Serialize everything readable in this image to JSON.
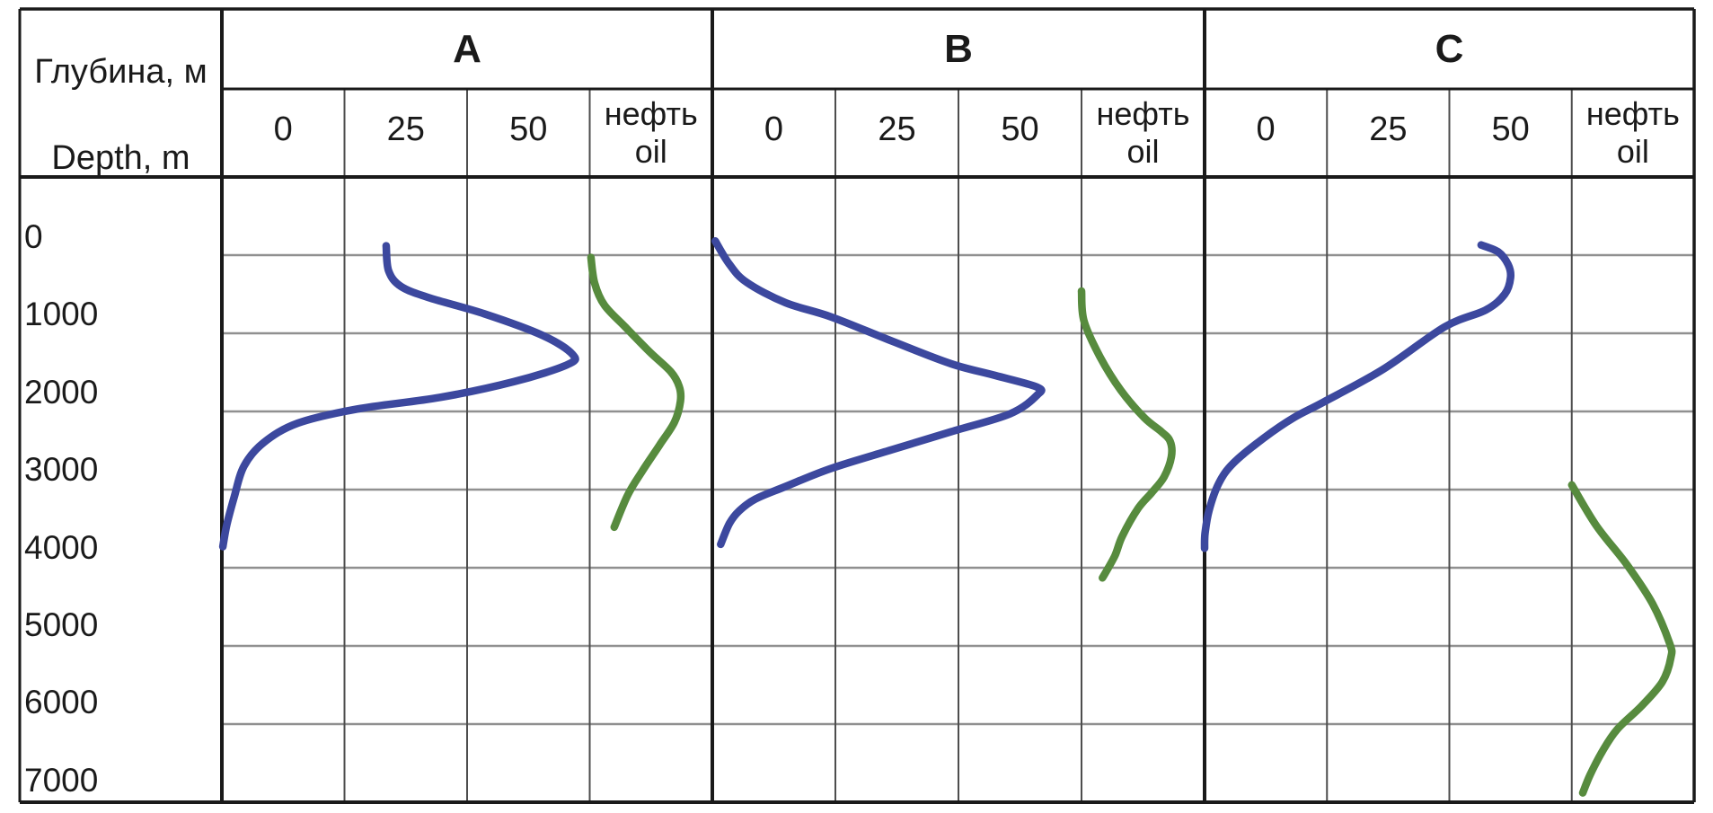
{
  "table": {
    "depth_header_ru": "Глубина, м",
    "depth_header_en": "Depth, m",
    "oil_header_ru": "нефть",
    "oil_header_en": "oil",
    "scale_ticks": [
      "0",
      "25",
      "50"
    ],
    "depth_ticks": [
      "0",
      "1000",
      "2000",
      "3000",
      "4000",
      "5000",
      "6000",
      "7000"
    ],
    "panel_labels": [
      "A",
      "B",
      "C"
    ]
  },
  "colors": {
    "blue_curve": "#3c489e",
    "green_curve": "#578b3e",
    "grid_horizontal": "#909090",
    "grid_vertical": "#4d4d4d",
    "border": "#1a1a1a",
    "text": "#1a1a1a",
    "background": "#ffffff"
  },
  "chart_data": {
    "type": "line",
    "orientation": "depth profiles, depth increases downward",
    "y_axis": {
      "label_ru": "Глубина, м",
      "label_en": "Depth, m",
      "unit": "m",
      "min": 0,
      "max": 7000,
      "tick_step": 1000,
      "direction": "down"
    },
    "x_axis": {
      "ticks": [
        0,
        25,
        50
      ],
      "note": "tick labels centered under grid columns; oil column (нефть/oil) is qualitative"
    },
    "grid": true,
    "panels": [
      {
        "label": "A",
        "blue_curve": {
          "color_key": "blue_curve",
          "points_value_depth": [
            [
              21,
              -120
            ],
            [
              21.5,
              200
            ],
            [
              24,
              400
            ],
            [
              30,
              550
            ],
            [
              41,
              750
            ],
            [
              53,
              1030
            ],
            [
              59,
              1270
            ],
            [
              58,
              1400
            ],
            [
              47,
              1620
            ],
            [
              32,
              1820
            ],
            [
              15,
              1970
            ],
            [
              3,
              2150
            ],
            [
              -4,
              2400
            ],
            [
              -8,
              2700
            ],
            [
              -10,
              3100
            ],
            [
              -11.5,
              3450
            ],
            [
              -12.3,
              3730
            ]
          ]
        },
        "oil_curve": {
          "color_key": "green_curve",
          "points_fraction_depth": [
            [
              0.01,
              30
            ],
            [
              0.04,
              360
            ],
            [
              0.12,
              640
            ],
            [
              0.29,
              920
            ],
            [
              0.49,
              1240
            ],
            [
              0.66,
              1490
            ],
            [
              0.73,
              1680
            ],
            [
              0.74,
              1870
            ],
            [
              0.69,
              2140
            ],
            [
              0.57,
              2430
            ],
            [
              0.43,
              2760
            ],
            [
              0.31,
              3070
            ],
            [
              0.2,
              3480
            ]
          ]
        }
      },
      {
        "label": "B",
        "blue_curve": {
          "color_key": "blue_curve",
          "points_value_depth": [
            [
              -11.9,
              -180
            ],
            [
              -9,
              120
            ],
            [
              -5.5,
              350
            ],
            [
              2.4,
              610
            ],
            [
              11.6,
              790
            ],
            [
              24,
              1100
            ],
            [
              36,
              1390
            ],
            [
              45,
              1540
            ],
            [
              53.5,
              1690
            ],
            [
              53.5,
              1790
            ],
            [
              48,
              2030
            ],
            [
              36,
              2260
            ],
            [
              24,
              2490
            ],
            [
              11.6,
              2730
            ],
            [
              2.4,
              2960
            ],
            [
              -3.7,
              3120
            ],
            [
              -7,
              3270
            ],
            [
              -9,
              3430
            ],
            [
              -10.8,
              3700
            ]
          ]
        },
        "oil_curve": {
          "color_key": "green_curve",
          "points_fraction_depth": [
            [
              0.0,
              460
            ],
            [
              0.02,
              840
            ],
            [
              0.15,
              1300
            ],
            [
              0.32,
              1730
            ],
            [
              0.51,
              2080
            ],
            [
              0.65,
              2260
            ],
            [
              0.72,
              2380
            ],
            [
              0.73,
              2580
            ],
            [
              0.67,
              2840
            ],
            [
              0.57,
              3040
            ],
            [
              0.46,
              3240
            ],
            [
              0.33,
              3600
            ],
            [
              0.27,
              3850
            ],
            [
              0.17,
              4130
            ]
          ]
        }
      },
      {
        "label": "C",
        "blue_curve": {
          "color_key": "blue_curve",
          "points_value_depth": [
            [
              44,
              -130
            ],
            [
              47.5,
              -40
            ],
            [
              49.5,
              120
            ],
            [
              50,
              290
            ],
            [
              48.8,
              500
            ],
            [
              45,
              700
            ],
            [
              36.5,
              920
            ],
            [
              24,
              1460
            ],
            [
              11.8,
              1880
            ],
            [
              5.7,
              2080
            ],
            [
              -0.4,
              2340
            ],
            [
              -6.6,
              2660
            ],
            [
              -9.6,
              2920
            ],
            [
              -11.6,
              3270
            ],
            [
              -12.4,
              3560
            ],
            [
              -12.5,
              3750
            ]
          ]
        },
        "oil_curve": {
          "color_key": "green_curve",
          "points_fraction_depth": [
            [
              0.0,
              2940
            ],
            [
              0.2,
              3460
            ],
            [
              0.45,
              3960
            ],
            [
              0.66,
              4460
            ],
            [
              0.8,
              4970
            ],
            [
              0.81,
              5150
            ],
            [
              0.74,
              5460
            ],
            [
              0.57,
              5770
            ],
            [
              0.37,
              6070
            ],
            [
              0.25,
              6350
            ],
            [
              0.15,
              6650
            ],
            [
              0.09,
              6880
            ]
          ]
        }
      }
    ]
  }
}
